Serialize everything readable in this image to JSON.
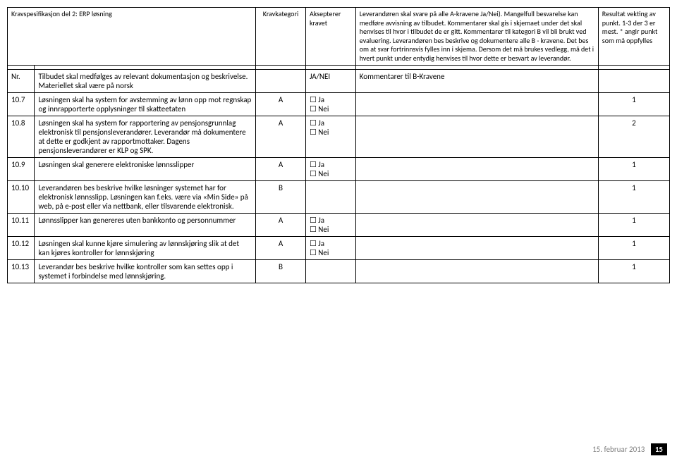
{
  "header": {
    "title": "Kravspesifikasjon del 2: ERP løsning",
    "col_cat": "Kravkategori",
    "col_acc": "Aksepterer kravet",
    "col_comment": "Leverandøren skal svare på alle A-kravene Ja/Nei). Mangelfull besvarelse kan medføre avvisning av tilbudet. Kommentarer skal gis i skjemaet under det skal henvises til hvor i tilbudet de er gitt. Kommentarer til kategori B vil bli brukt ved evaluering. Leverandøren bes beskrive og dokumentere alle B - kravene. Det bes om at svar fortrinnsvis fylles inn i skjema. Dersom det må brukes vedlegg, må det i hvert punkt under entydig henvises til hvor dette er besvart av leverandør.",
    "col_result": "Resultat vekting av punkt. 1-3 der 3 er mest. * angir punkt som må oppfylles"
  },
  "subheader": {
    "nr": "Nr.",
    "desc": "Tilbudet skal medfølges av relevant dokumentasjon og beskrivelse. Materiellet skal være på norsk",
    "acc": "JA/NEI",
    "comment": "Kommentarer til B-Kravene"
  },
  "rows": [
    {
      "nr": "10.7",
      "desc": "Løsningen skal ha system for avstemming av lønn opp mot regnskap og innrapporterte opplysninger til skatteetaten",
      "cat": "A",
      "acc_ja": "☐ Ja",
      "acc_nei": "☐ Nei",
      "result": "1"
    },
    {
      "nr": "10.8",
      "desc": "Løsningen skal ha system for rapportering av pensjonsgrunnlag elektronisk til pensjonsleverandører. Leverandør må dokumentere at dette er godkjent av rapportmottaker. Dagens pensjonsleverandører er KLP og SPK.",
      "cat": "A",
      "acc_ja": "☐ Ja",
      "acc_nei": "☐ Nei",
      "result": "2"
    },
    {
      "nr": "10.9",
      "desc": "Løsningen skal generere elektroniske lønnsslipper",
      "cat": "A",
      "acc_ja": "☐ Ja",
      "acc_nei": "☐ Nei",
      "result": "1"
    },
    {
      "nr": "10.10",
      "desc": "Leverandøren bes beskrive hvilke løsninger systemet har for elektronisk lønnsslipp. Løsningen kan f.eks. være via «Min Side» på web, på e-post eller via nettbank, eller tilsvarende elektronisk.",
      "cat": "B",
      "acc_ja": "",
      "acc_nei": "",
      "result": "1"
    },
    {
      "nr": "10.11",
      "desc": "Lønnsslipper kan genereres uten bankkonto og personnummer",
      "cat": "A",
      "acc_ja": "☐ Ja",
      "acc_nei": "☐ Nei",
      "result": "1"
    },
    {
      "nr": "10.12",
      "desc": "Løsningen skal kunne kjøre simulering av lønnskjøring slik at det kan kjøres kontroller for lønnskjøring",
      "cat": "A",
      "acc_ja": "☐ Ja",
      "acc_nei": "☐ Nei",
      "result": "1"
    },
    {
      "nr": "10.13",
      "desc": "Leverandør bes beskrive hvilke kontroller som kan settes opp i systemet i forbindelse med lønnskjøring.",
      "cat": "B",
      "acc_ja": "",
      "acc_nei": "",
      "result": "1"
    }
  ],
  "footer": {
    "date": "15. februar 2013",
    "page": "15"
  }
}
